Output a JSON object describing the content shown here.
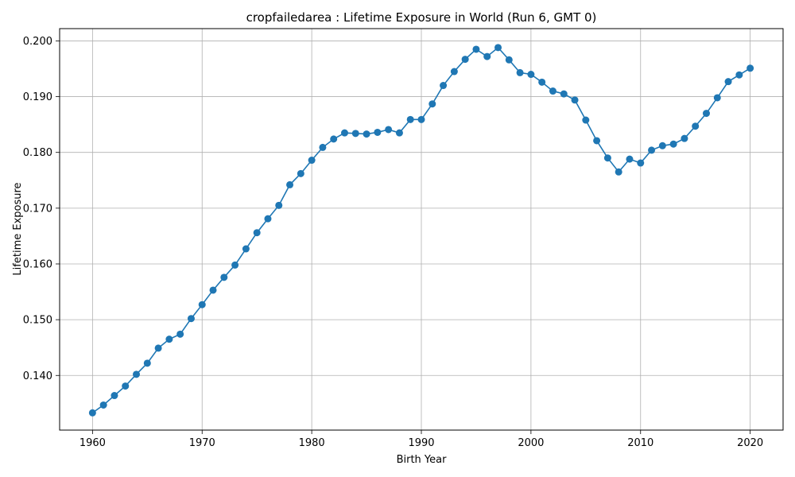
{
  "chart_data": {
    "type": "line",
    "title": "cropfailedarea : Lifetime Exposure in World (Run 6, GMT 0)",
    "xlabel": "Birth Year",
    "ylabel": "Lifetime Exposure",
    "xlim": [
      1957,
      2023
    ],
    "ylim": [
      0.1302,
      0.2022
    ],
    "xticks": [
      1960,
      1970,
      1980,
      1990,
      2000,
      2010,
      2020
    ],
    "yticks": [
      0.14,
      0.15,
      0.16,
      0.17,
      0.18,
      0.19,
      0.2
    ],
    "ytick_labels": [
      "0.140",
      "0.150",
      "0.160",
      "0.170",
      "0.180",
      "0.190",
      "0.200"
    ],
    "grid": true,
    "line_color": "#1f77b4",
    "marker": "circle",
    "series": [
      {
        "x": [
          1960,
          1961,
          1962,
          1963,
          1964,
          1965,
          1966,
          1967,
          1968,
          1969,
          1970,
          1971,
          1972,
          1973,
          1974,
          1975,
          1976,
          1977,
          1978,
          1979,
          1980,
          1981,
          1982,
          1983,
          1984,
          1985,
          1986,
          1987,
          1988,
          1989,
          1990,
          1991,
          1992,
          1993,
          1994,
          1995,
          1996,
          1997,
          1998,
          1999,
          2000,
          2001,
          2002,
          2003,
          2004,
          2005,
          2006,
          2007,
          2008,
          2009,
          2010,
          2011,
          2012,
          2013,
          2014,
          2015,
          2016,
          2017,
          2018,
          2019,
          2020
        ],
        "y": [
          0.1333,
          0.1347,
          0.1364,
          0.1381,
          0.1402,
          0.1422,
          0.1449,
          0.1465,
          0.1474,
          0.1502,
          0.1527,
          0.1553,
          0.1576,
          0.1598,
          0.1627,
          0.1656,
          0.1681,
          0.1705,
          0.1742,
          0.1762,
          0.1786,
          0.1809,
          0.1824,
          0.1835,
          0.1834,
          0.1833,
          0.1836,
          0.1841,
          0.1835,
          0.1859,
          0.1859,
          0.1887,
          0.192,
          0.1945,
          0.1967,
          0.1985,
          0.1972,
          0.1988,
          0.1966,
          0.1943,
          0.194,
          0.1926,
          0.191,
          0.1905,
          0.1894,
          0.1858,
          0.1821,
          0.179,
          0.1765,
          0.1788,
          0.1781,
          0.1804,
          0.1812,
          0.1815,
          0.1825,
          0.1847,
          0.187,
          0.1898,
          0.1927,
          0.1939,
          0.1951
        ]
      }
    ]
  }
}
